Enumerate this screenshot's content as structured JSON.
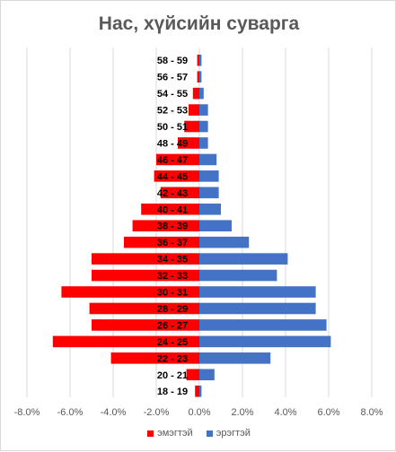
{
  "chart_data": {
    "type": "bar",
    "orientation": "horizontal",
    "title": "Нас, хүйсийн суварга",
    "categories": [
      "18 - 19",
      "20 - 21",
      "22 - 23",
      "24 - 25",
      "26 - 27",
      "28 - 29",
      "30 - 31",
      "32 - 33",
      "34 - 35",
      "36 - 37",
      "38 - 39",
      "40 - 41",
      "42 - 43",
      "44 - 45",
      "46 - 47",
      "48 - 49",
      "50 - 51",
      "52 - 53",
      "54 - 55",
      "56 - 57",
      "58 - 59"
    ],
    "series": [
      {
        "name": "эмэгтэй",
        "color": "#ff0000",
        "values": [
          -0.2,
          -0.6,
          -4.1,
          -6.8,
          -5.0,
          -5.1,
          -6.4,
          -5.0,
          -5.0,
          -3.5,
          -3.1,
          -2.7,
          -1.8,
          -2.1,
          -2.0,
          -1.0,
          -0.7,
          -0.5,
          -0.3,
          -0.1,
          -0.1
        ]
      },
      {
        "name": "эрэгтэй",
        "color": "#4472c4",
        "values": [
          0.1,
          0.7,
          3.3,
          6.1,
          5.9,
          5.4,
          5.4,
          3.6,
          4.1,
          2.3,
          1.5,
          1.0,
          0.9,
          0.9,
          0.8,
          0.4,
          0.4,
          0.4,
          0.2,
          0.1,
          0.1
        ]
      }
    ],
    "xlim": [
      -8,
      8
    ],
    "xticks": [
      "-8.0%",
      "-6.0%",
      "-4.0%",
      "-2.0%",
      "0.0%",
      "2.0%",
      "4.0%",
      "6.0%",
      "8.0%"
    ],
    "grid": true,
    "legend_position": "bottom"
  }
}
